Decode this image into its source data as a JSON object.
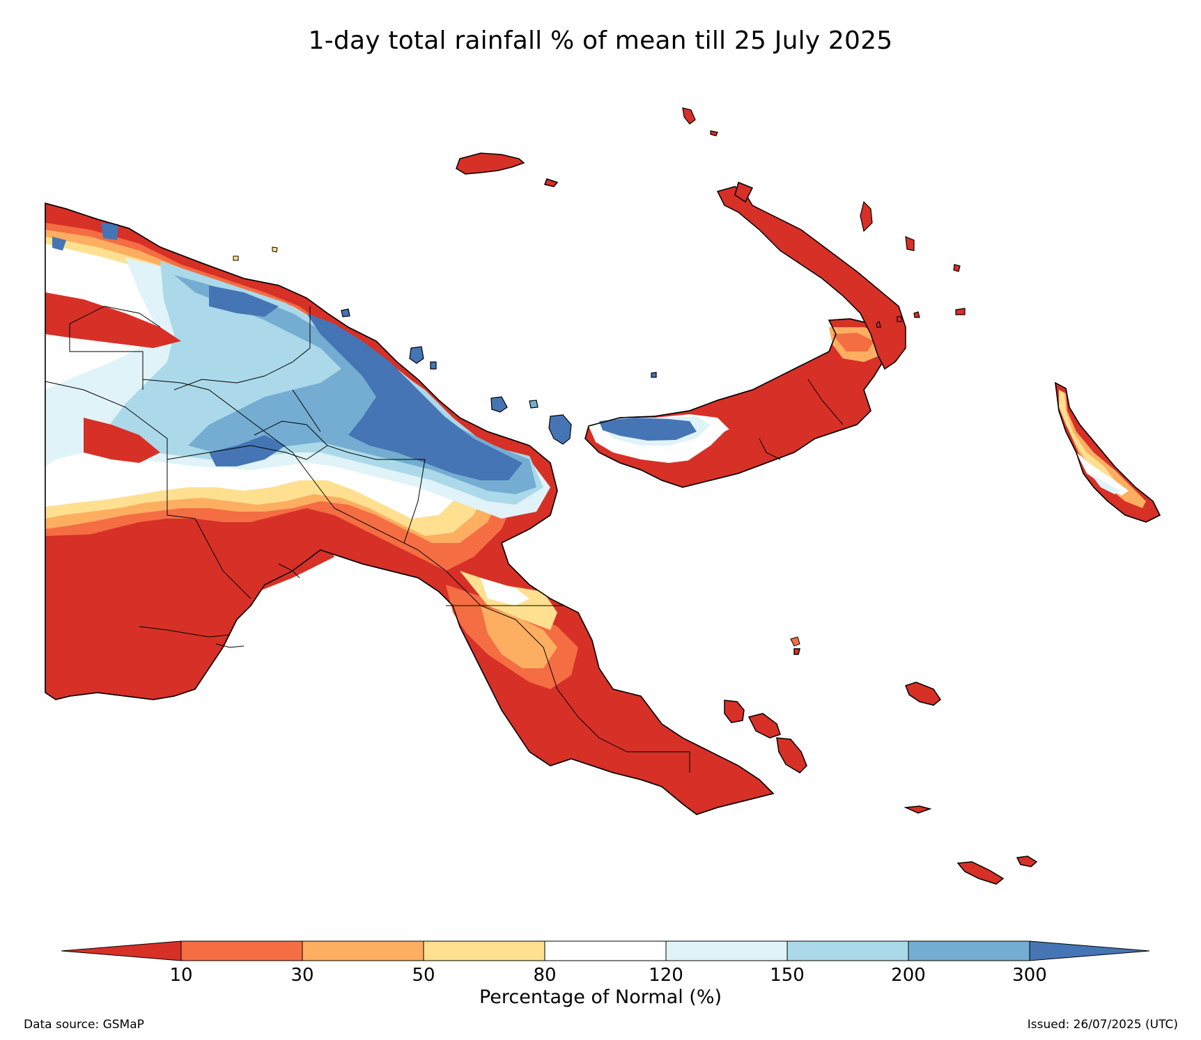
{
  "title": "1-day total rainfall % of mean till 25 July 2025",
  "colorbar": {
    "label": "Percentage of Normal (%)",
    "ticks": [
      "10",
      "30",
      "50",
      "80",
      "120",
      "150",
      "200",
      "300"
    ],
    "colors": {
      "below_10": "#d73027",
      "10_30": "#f46d43",
      "30_50": "#fdae61",
      "50_80": "#fee090",
      "80_120": "#ffffff",
      "120_150": "#e0f3f8",
      "150_200": "#abd9e9",
      "200_300": "#74add1",
      "above_300": "#4575b4"
    }
  },
  "footer": {
    "source": "Data source: GSMaP",
    "issued": "Issued: 26/07/2025 (UTC)"
  }
}
